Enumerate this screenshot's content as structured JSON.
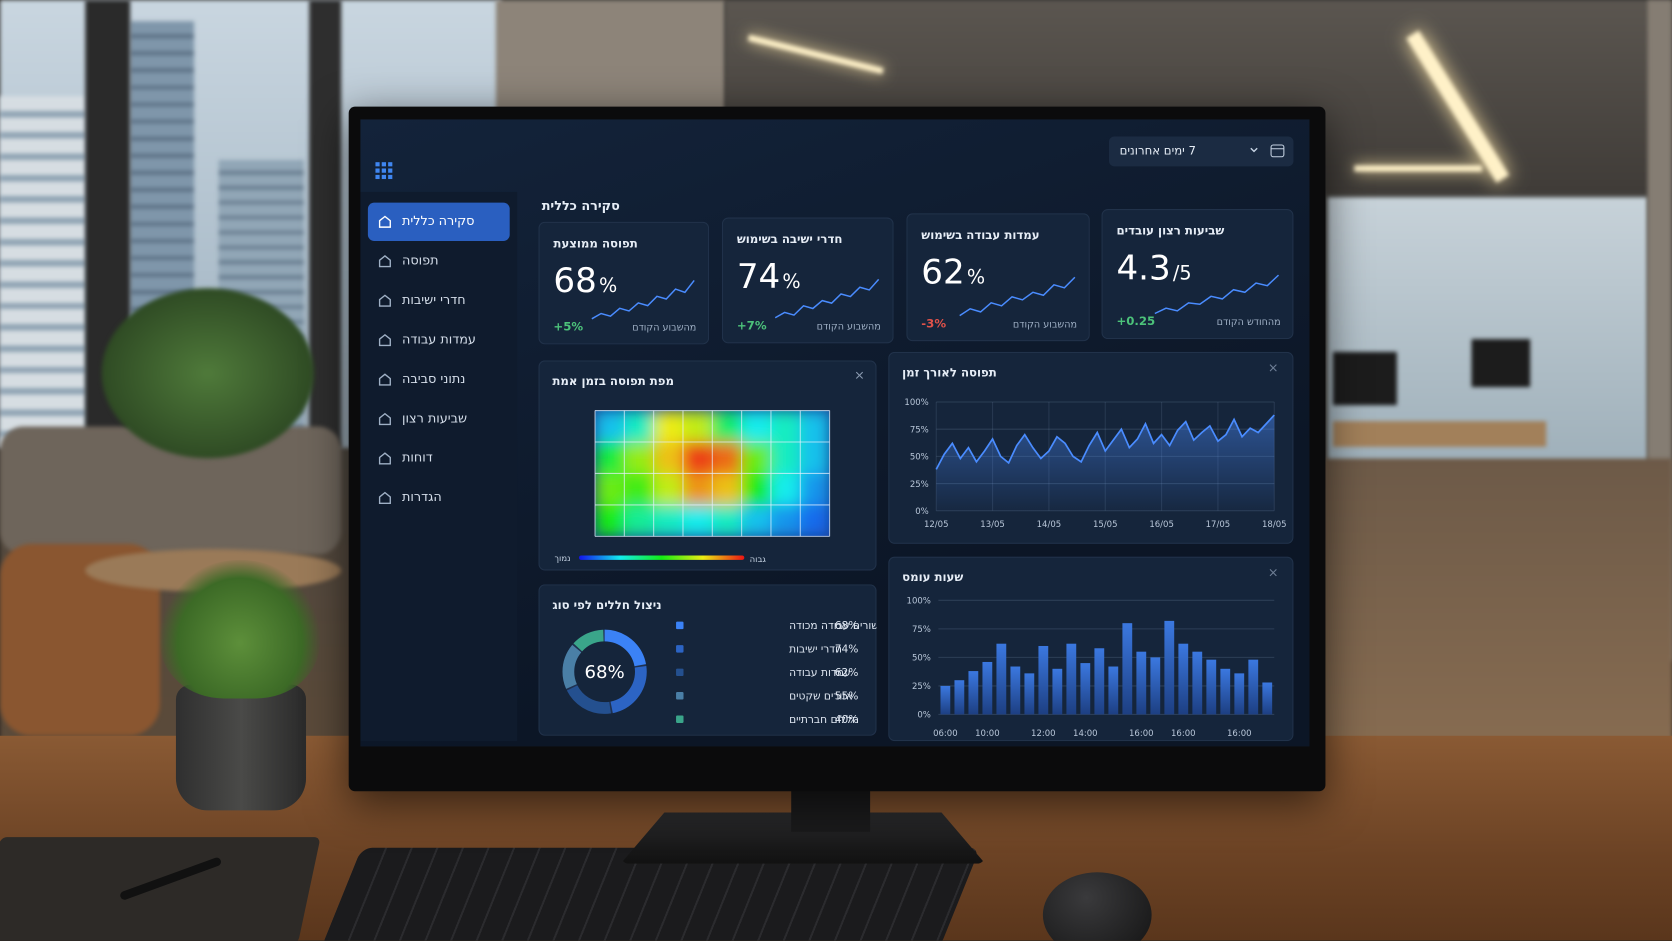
{
  "header": {
    "date_range": "7 ימים אחרונים"
  },
  "sidebar": {
    "items": [
      "סקירה כללית",
      "תפוסה",
      "חדרי ישיבות",
      "עמדות עבודה",
      "נתוני סביבה",
      "שביעות רצון",
      "דוחות",
      "הגדרות"
    ],
    "active_index": 0
  },
  "overview": {
    "title": "סקירה כללית",
    "kpis": [
      {
        "title": "תפוסה ממוצעת",
        "value": 68,
        "unit": "%",
        "change": "+5%",
        "trend": "up",
        "period": "מהשבוע הקודם",
        "sparkline": [
          10,
          18,
          14,
          26,
          22,
          34,
          30,
          44,
          40,
          55,
          50,
          68
        ]
      },
      {
        "title": "חדרי ישיבה בשימוש",
        "value": 74,
        "unit": "%",
        "change": "+7%",
        "trend": "up",
        "period": "מהשבוע הקודם",
        "sparkline": [
          12,
          20,
          16,
          30,
          26,
          38,
          34,
          48,
          44,
          58,
          54,
          70
        ]
      },
      {
        "title": "עמדות עבודה בשימוש",
        "value": 62,
        "unit": "%",
        "change": "-3%",
        "trend": "down",
        "period": "מהשבוע הקודם",
        "sparkline": [
          15,
          24,
          20,
          32,
          28,
          40,
          36,
          46,
          42,
          56,
          52,
          66
        ]
      },
      {
        "title": "שביעות רצון עובדים",
        "value": 4.3,
        "unit": "/5",
        "change": "+0.25",
        "trend": "up",
        "period": "מהחודש הקודם",
        "sparkline": [
          14,
          22,
          18,
          30,
          28,
          40,
          36,
          50,
          46,
          60,
          56,
          72
        ]
      }
    ]
  },
  "heatmap": {
    "title": "מפת תפוסה בזמן אמת",
    "cells": [
      [
        20,
        30,
        75,
        70,
        40,
        25,
        30,
        20
      ],
      [
        45,
        65,
        80,
        95,
        90,
        60,
        30,
        20
      ],
      [
        60,
        55,
        70,
        85,
        80,
        50,
        25,
        15
      ],
      [
        50,
        35,
        30,
        25,
        30,
        20,
        15,
        10
      ]
    ],
    "legend_low": "נמוך",
    "legend_high": "גבוה"
  },
  "occupancy_chart": {
    "type": "line",
    "title": "תפוסה לאורך זמן",
    "color": "#4a8cff",
    "categories": [
      "12/05",
      null,
      null,
      null,
      null,
      null,
      null,
      "13/05",
      null,
      null,
      null,
      null,
      null,
      null,
      "14/05",
      null,
      null,
      null,
      null,
      null,
      null,
      "15/05",
      null,
      null,
      null,
      null,
      null,
      null,
      "16/05",
      null,
      null,
      null,
      null,
      null,
      null,
      "17/05",
      null,
      null,
      null,
      null,
      null,
      null,
      "18/05"
    ],
    "values": [
      38,
      52,
      62,
      48,
      58,
      45,
      55,
      66,
      50,
      44,
      60,
      70,
      58,
      48,
      55,
      68,
      62,
      50,
      45,
      60,
      72,
      55,
      65,
      75,
      58,
      66,
      80,
      62,
      70,
      60,
      74,
      82,
      65,
      72,
      78,
      64,
      70,
      84,
      68,
      76,
      72,
      80,
      88
    ],
    "ylim": [
      0,
      100
    ],
    "yticks": [
      {
        "value": 0,
        "label": "0%"
      },
      {
        "value": 25,
        "label": "25%"
      },
      {
        "value": 50,
        "label": "50%"
      },
      {
        "value": 75,
        "label": "75%"
      },
      {
        "value": 100,
        "label": "100%"
      }
    ],
    "grid": true
  },
  "peak_hours": {
    "type": "bar",
    "title": "שעות עומס",
    "color": "#3b78e0",
    "categories": [
      "06:00",
      null,
      null,
      "10:00",
      null,
      null,
      null,
      "12:00",
      null,
      null,
      "14:00",
      null,
      null,
      null,
      "16:00",
      null,
      null,
      "16:00",
      null,
      null,
      null,
      "16:00",
      null,
      null
    ],
    "values": [
      25,
      30,
      38,
      46,
      62,
      42,
      36,
      60,
      40,
      62,
      45,
      58,
      42,
      80,
      55,
      50,
      82,
      62,
      55,
      48,
      40,
      36,
      48,
      28
    ],
    "ylim": [
      0,
      100
    ],
    "yticks": [
      {
        "value": 0,
        "label": "0%"
      },
      {
        "value": 25,
        "label": "25%"
      },
      {
        "value": 50,
        "label": "50%"
      },
      {
        "value": 75,
        "label": "75%"
      },
      {
        "value": 100,
        "label": "100%"
      }
    ],
    "grid": true
  },
  "space_distribution": {
    "type": "pie",
    "title": "ניצול חללים לפי סוג",
    "center_label": "68%",
    "categories": [
      "מכשורים עבודה מכודה",
      "חדרי ישיבות",
      "עמדות עבודה",
      "אזורים שקטים",
      "חללים חברתיים"
    ],
    "values": [
      68,
      74,
      62,
      55,
      40
    ],
    "value_labels": [
      "68%",
      "74%",
      "62%",
      "55%",
      "40%"
    ],
    "colors": [
      "#3b82f6",
      "#2c64c4",
      "#24508f",
      "#4a7fa6",
      "#3aa58a"
    ]
  }
}
